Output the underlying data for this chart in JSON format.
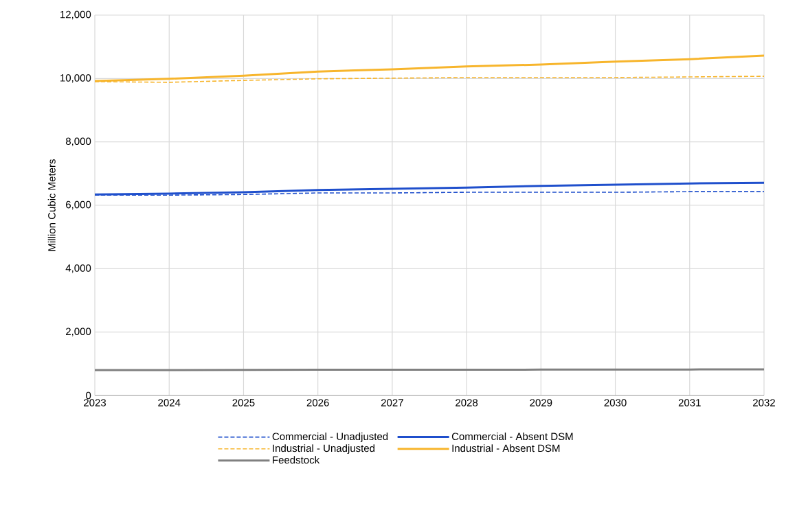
{
  "chart_data": {
    "type": "line",
    "ylabel": "Million Cubic Meters",
    "x": [
      2023,
      2024,
      2025,
      2026,
      2027,
      2028,
      2029,
      2030,
      2031,
      2032
    ],
    "xlim": [
      2023,
      2032
    ],
    "xticks": [
      2023,
      2024,
      2025,
      2026,
      2027,
      2028,
      2029,
      2030,
      2031,
      2032
    ],
    "ylim": [
      0,
      12000
    ],
    "yticks": [
      0,
      {
        "value": 2000,
        "label": "2,000"
      },
      {
        "value": 4000,
        "label": "4,000"
      },
      {
        "value": 6000,
        "label": "6,000"
      },
      {
        "value": 8000,
        "label": "8,000"
      },
      {
        "value": 10000,
        "label": "10,000"
      },
      {
        "value": 12000,
        "label": "12,000"
      }
    ],
    "grid": true,
    "legend": "bottom",
    "marker": "none",
    "series": [
      {
        "name": "Commercial - Unadjusted",
        "color": "#1f4fcc",
        "line_style": "dashed",
        "values": [
          6320,
          6320,
          6340,
          6390,
          6390,
          6410,
          6410,
          6410,
          6430,
          6430
        ]
      },
      {
        "name": "Commercial - Absent DSM",
        "color": "#1f4fcc",
        "line_style": "solid",
        "values": [
          6340,
          6370,
          6410,
          6480,
          6520,
          6560,
          6610,
          6650,
          6690,
          6710
        ]
      },
      {
        "name": "Industrial - Unadjusted",
        "color": "#f7b52c",
        "line_style": "dashed",
        "values": [
          9900,
          9880,
          9940,
          9990,
          10010,
          10030,
          10030,
          10030,
          10050,
          10070
        ]
      },
      {
        "name": "Industrial - Absent DSM",
        "color": "#f7b52c",
        "line_style": "solid",
        "values": [
          9920,
          9990,
          10090,
          10220,
          10290,
          10380,
          10440,
          10530,
          10610,
          10720
        ]
      },
      {
        "name": "Feedstock",
        "color": "#808080",
        "line_style": "solid",
        "values": [
          800,
          800,
          805,
          810,
          810,
          812,
          815,
          815,
          820,
          823
        ]
      }
    ]
  }
}
